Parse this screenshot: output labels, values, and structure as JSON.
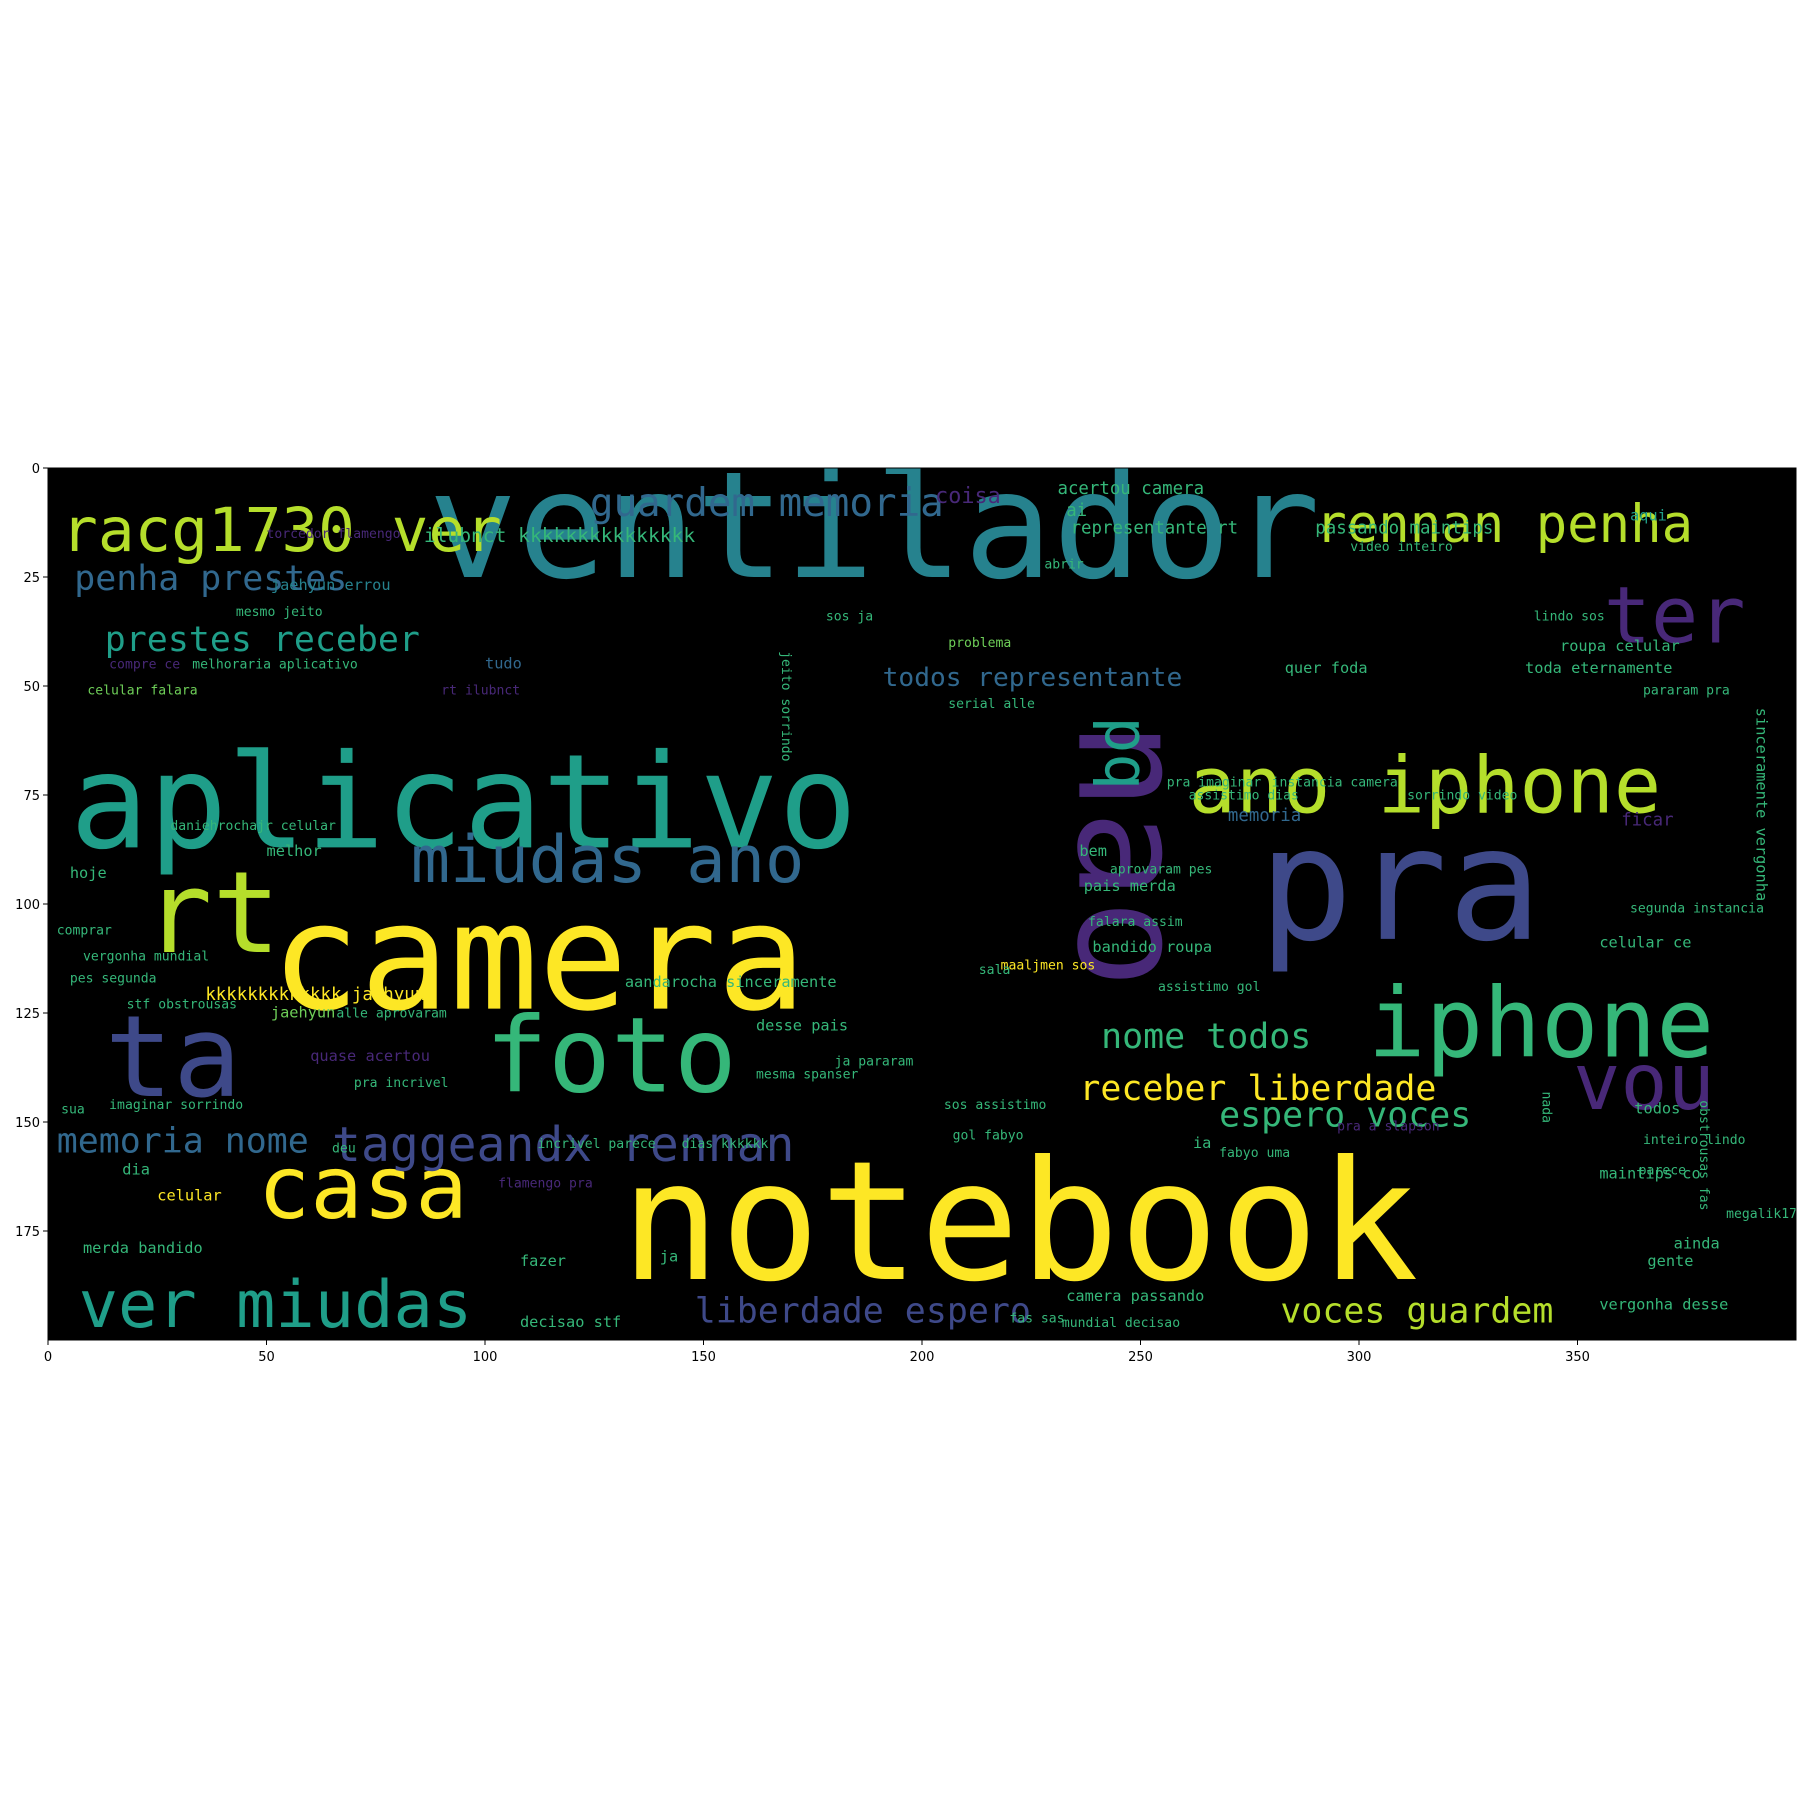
{
  "chart_data": {
    "type": "wordcloud",
    "title": "",
    "xlabel": "",
    "ylabel": "",
    "xlim": [
      0,
      400
    ],
    "ylim": [
      200,
      0
    ],
    "xticks": [
      0,
      50,
      100,
      150,
      200,
      250,
      300,
      350
    ],
    "yticks": [
      0,
      25,
      50,
      75,
      100,
      125,
      150,
      175
    ],
    "background": "#000000",
    "palette": {
      "yellow": "#fde725",
      "lime": "#b5de2b",
      "green": "#6ece58",
      "teal": "#35b779",
      "cyan": "#1f9e89",
      "blue": "#26828e",
      "steel": "#31688e",
      "indigo": "#3e4989",
      "purple": "#482878",
      "dark": "#440154"
    },
    "words": [
      {
        "text": "ventilador",
        "x": 87,
        "y": 25,
        "size": 34,
        "color": "blue",
        "rotate": 0
      },
      {
        "text": "notebook",
        "x": 131,
        "y": 186,
        "size": 38,
        "color": "yellow",
        "rotate": 0
      },
      {
        "text": "pra",
        "x": 277,
        "y": 108,
        "size": 36,
        "color": "indigo",
        "rotate": 0
      },
      {
        "text": "nao",
        "x": 236,
        "y": 58,
        "size": 34,
        "color": "purple",
        "rotate": 90
      },
      {
        "text": "aplicativo",
        "x": 5,
        "y": 87,
        "size": 30,
        "color": "cyan",
        "rotate": 0
      },
      {
        "text": "camera",
        "x": 51,
        "y": 124,
        "size": 34,
        "color": "yellow",
        "rotate": 0
      },
      {
        "text": "rt",
        "x": 22,
        "y": 111,
        "size": 26,
        "color": "lime",
        "rotate": 0
      },
      {
        "text": "ta",
        "x": 13,
        "y": 144,
        "size": 26,
        "color": "indigo",
        "rotate": 0
      },
      {
        "text": "foto",
        "x": 100,
        "y": 143,
        "size": 24,
        "color": "teal",
        "rotate": 0
      },
      {
        "text": "iphone",
        "x": 302,
        "y": 135,
        "size": 22,
        "color": "teal",
        "rotate": 0
      },
      {
        "text": "ano iphone",
        "x": 261,
        "y": 79,
        "size": 18,
        "color": "lime",
        "rotate": 0
      },
      {
        "text": "ter",
        "x": 356,
        "y": 40,
        "size": 18,
        "color": "purple",
        "rotate": 0
      },
      {
        "text": "vou",
        "x": 349,
        "y": 147,
        "size": 18,
        "color": "purple",
        "rotate": 0
      },
      {
        "text": "pq",
        "x": 242,
        "y": 57,
        "size": 14,
        "color": "cyan",
        "rotate": 90
      },
      {
        "text": "racg1730 ver",
        "x": 3,
        "y": 19,
        "size": 14,
        "color": "lime",
        "rotate": 0
      },
      {
        "text": "rennan penha",
        "x": 290,
        "y": 17,
        "size": 12,
        "color": "lime",
        "rotate": 0
      },
      {
        "text": "miudas ano",
        "x": 83,
        "y": 95,
        "size": 15,
        "color": "steel",
        "rotate": 0
      },
      {
        "text": "casa",
        "x": 48,
        "y": 172,
        "size": 20,
        "color": "yellow",
        "rotate": 0
      },
      {
        "text": "ver miudas",
        "x": 7,
        "y": 197,
        "size": 15,
        "color": "cyan",
        "rotate": 0
      },
      {
        "text": "taggeandx rennan",
        "x": 65,
        "y": 159,
        "size": 11,
        "color": "indigo",
        "rotate": 0
      },
      {
        "text": "guardem memoria",
        "x": 124,
        "y": 11,
        "size": 9,
        "color": "steel",
        "rotate": 0
      },
      {
        "text": "penha prestes",
        "x": 6,
        "y": 28,
        "size": 8,
        "color": "steel",
        "rotate": 0
      },
      {
        "text": "prestes receber",
        "x": 13,
        "y": 42,
        "size": 8,
        "color": "cyan",
        "rotate": 0
      },
      {
        "text": "memoria nome",
        "x": 2,
        "y": 157,
        "size": 8,
        "color": "steel",
        "rotate": 0
      },
      {
        "text": "receber liberdade",
        "x": 236,
        "y": 145,
        "size": 8,
        "color": "yellow",
        "rotate": 0
      },
      {
        "text": "espero voces",
        "x": 268,
        "y": 151,
        "size": 8,
        "color": "teal",
        "rotate": 0
      },
      {
        "text": "nome todos",
        "x": 241,
        "y": 133,
        "size": 8,
        "color": "teal",
        "rotate": 0
      },
      {
        "text": "voces guardem",
        "x": 282,
        "y": 196,
        "size": 8,
        "color": "lime",
        "rotate": 0
      },
      {
        "text": "liberdade espero",
        "x": 148,
        "y": 196,
        "size": 8,
        "color": "indigo",
        "rotate": 0
      },
      {
        "text": "todos representante",
        "x": 191,
        "y": 50,
        "size": 6,
        "color": "steel",
        "rotate": 0
      },
      {
        "text": "ilubnct kkkkkkkkkkkkkkk",
        "x": 86,
        "y": 17,
        "size": 4.5,
        "color": "teal",
        "rotate": 0
      },
      {
        "text": "acertou camera",
        "x": 231,
        "y": 6,
        "size": 4,
        "color": "teal",
        "rotate": 0
      },
      {
        "text": "coisa",
        "x": 203,
        "y": 8,
        "size": 5,
        "color": "purple",
        "rotate": 0
      },
      {
        "text": "ai",
        "x": 233,
        "y": 11,
        "size": 4,
        "color": "teal",
        "rotate": 0
      },
      {
        "text": "representante rt",
        "x": 234,
        "y": 15,
        "size": 4,
        "color": "teal",
        "rotate": 0
      },
      {
        "text": "passando maintips",
        "x": 290,
        "y": 15,
        "size": 4,
        "color": "teal",
        "rotate": 0
      },
      {
        "text": "aqui",
        "x": 362,
        "y": 12,
        "size": 3.5,
        "color": "cyan",
        "rotate": 0
      },
      {
        "text": "torcedor flamengo",
        "x": 50,
        "y": 16,
        "size": 3,
        "color": "purple",
        "rotate": 0
      },
      {
        "text": "video inteiro",
        "x": 298,
        "y": 19,
        "size": 3,
        "color": "teal",
        "rotate": 0
      },
      {
        "text": "jaehyun errou",
        "x": 51,
        "y": 28,
        "size": 3.5,
        "color": "blue",
        "rotate": 0
      },
      {
        "text": "abrir",
        "x": 228,
        "y": 23,
        "size": 3,
        "color": "teal",
        "rotate": 0
      },
      {
        "text": "mesmo jeito",
        "x": 43,
        "y": 34,
        "size": 3,
        "color": "teal",
        "rotate": 0
      },
      {
        "text": "sos ja",
        "x": 178,
        "y": 35,
        "size": 3,
        "color": "teal",
        "rotate": 0
      },
      {
        "text": "lindo sos",
        "x": 340,
        "y": 35,
        "size": 3,
        "color": "teal",
        "rotate": 0
      },
      {
        "text": "problema",
        "x": 206,
        "y": 41,
        "size": 3,
        "color": "green",
        "rotate": 0
      },
      {
        "text": "roupa celular",
        "x": 346,
        "y": 42,
        "size": 3.5,
        "color": "teal",
        "rotate": 0
      },
      {
        "text": "tudo",
        "x": 100,
        "y": 46,
        "size": 3.5,
        "color": "steel",
        "rotate": 0
      },
      {
        "text": "quer foda",
        "x": 283,
        "y": 47,
        "size": 3.5,
        "color": "teal",
        "rotate": 0
      },
      {
        "text": "toda eternamente",
        "x": 338,
        "y": 47,
        "size": 3.5,
        "color": "teal",
        "rotate": 0
      },
      {
        "text": "compre ce",
        "x": 14,
        "y": 46,
        "size": 3,
        "color": "purple",
        "rotate": 0
      },
      {
        "text": "melhoraria aplicativo",
        "x": 33,
        "y": 46,
        "size": 3,
        "color": "teal",
        "rotate": 0
      },
      {
        "text": "celular falara",
        "x": 9,
        "y": 52,
        "size": 3,
        "color": "green",
        "rotate": 0
      },
      {
        "text": "rt ilubnct",
        "x": 90,
        "y": 52,
        "size": 3,
        "color": "purple",
        "rotate": 0
      },
      {
        "text": "pararam pra",
        "x": 365,
        "y": 52,
        "size": 3,
        "color": "teal",
        "rotate": 0
      },
      {
        "text": "serial alle",
        "x": 206,
        "y": 55,
        "size": 3,
        "color": "teal",
        "rotate": 0
      },
      {
        "text": "pra imaginar",
        "x": 256,
        "y": 73,
        "size": 3,
        "color": "teal",
        "rotate": 0
      },
      {
        "text": "memoria",
        "x": 270,
        "y": 81,
        "size": 4,
        "color": "steel",
        "rotate": 0
      },
      {
        "text": "ficar",
        "x": 360,
        "y": 82,
        "size": 4,
        "color": "purple",
        "rotate": 0
      },
      {
        "text": "daniehrochajr celular",
        "x": 28,
        "y": 83,
        "size": 3,
        "color": "teal",
        "rotate": 0
      },
      {
        "text": "melhor",
        "x": 50,
        "y": 89,
        "size": 3.5,
        "color": "teal",
        "rotate": 0
      },
      {
        "text": "hoje",
        "x": 5,
        "y": 94,
        "size": 3.5,
        "color": "teal",
        "rotate": 0
      },
      {
        "text": "bem",
        "x": 236,
        "y": 89,
        "size": 3.5,
        "color": "teal",
        "rotate": 0
      },
      {
        "text": "pais merda",
        "x": 237,
        "y": 97,
        "size": 3.5,
        "color": "teal",
        "rotate": 0
      },
      {
        "text": "aprovaram pes",
        "x": 243,
        "y": 93,
        "size": 3,
        "color": "teal",
        "rotate": 0
      },
      {
        "text": "segunda instancia",
        "x": 362,
        "y": 102,
        "size": 3,
        "color": "teal",
        "rotate": 0
      },
      {
        "text": "comprar",
        "x": 2,
        "y": 107,
        "size": 3,
        "color": "teal",
        "rotate": 0
      },
      {
        "text": "falara assim",
        "x": 238,
        "y": 105,
        "size": 3,
        "color": "teal",
        "rotate": 0
      },
      {
        "text": "vergonha mundial",
        "x": 8,
        "y": 113,
        "size": 3,
        "color": "teal",
        "rotate": 0
      },
      {
        "text": "bandido roupa",
        "x": 239,
        "y": 111,
        "size": 3.5,
        "color": "teal",
        "rotate": 0
      },
      {
        "text": "celular ce",
        "x": 355,
        "y": 110,
        "size": 3.5,
        "color": "teal",
        "rotate": 0
      },
      {
        "text": "pes segunda",
        "x": 5,
        "y": 118,
        "size": 3,
        "color": "teal",
        "rotate": 0
      },
      {
        "text": "kkkkkkkkkkkkk jaehyun",
        "x": 36,
        "y": 122,
        "size": 4,
        "color": "yellow",
        "rotate": 0
      },
      {
        "text": "aandarocha sinceramente",
        "x": 132,
        "y": 119,
        "size": 3.5,
        "color": "teal",
        "rotate": 0
      },
      {
        "text": "maaljmen sos",
        "x": 218,
        "y": 115,
        "size": 3,
        "color": "yellow",
        "rotate": 0
      },
      {
        "text": "assistimo gol",
        "x": 254,
        "y": 120,
        "size": 3,
        "color": "teal",
        "rotate": 0
      },
      {
        "text": "stf obstrousas",
        "x": 18,
        "y": 124,
        "size": 3,
        "color": "teal",
        "rotate": 0
      },
      {
        "text": "jaehyun",
        "x": 51,
        "y": 126,
        "size": 3.5,
        "color": "green",
        "rotate": 0
      },
      {
        "text": "alle aprovaram",
        "x": 66,
        "y": 126,
        "size": 3,
        "color": "teal",
        "rotate": 0
      },
      {
        "text": "desse pais",
        "x": 162,
        "y": 129,
        "size": 3.5,
        "color": "teal",
        "rotate": 0
      },
      {
        "text": "ja pararam",
        "x": 180,
        "y": 137,
        "size": 3,
        "color": "teal",
        "rotate": 0
      },
      {
        "text": "quase acertou",
        "x": 60,
        "y": 136,
        "size": 3.5,
        "color": "purple",
        "rotate": 0
      },
      {
        "text": "pra incrivel",
        "x": 70,
        "y": 142,
        "size": 3,
        "color": "teal",
        "rotate": 0
      },
      {
        "text": "mesma spanser",
        "x": 162,
        "y": 140,
        "size": 3,
        "color": "teal",
        "rotate": 0
      },
      {
        "text": "imaginar sorrindo",
        "x": 14,
        "y": 147,
        "size": 3,
        "color": "teal",
        "rotate": 0
      },
      {
        "text": "sos assistimo",
        "x": 205,
        "y": 147,
        "size": 3,
        "color": "teal",
        "rotate": 0
      },
      {
        "text": "deu",
        "x": 65,
        "y": 157,
        "size": 3,
        "color": "teal",
        "rotate": 0
      },
      {
        "text": "incrivel parece",
        "x": 112,
        "y": 156,
        "size": 3,
        "color": "teal",
        "rotate": 0
      },
      {
        "text": "dias kkkkkk",
        "x": 145,
        "y": 156,
        "size": 3,
        "color": "teal",
        "rotate": 0
      },
      {
        "text": "gol fabyo",
        "x": 207,
        "y": 154,
        "size": 3,
        "color": "teal",
        "rotate": 0
      },
      {
        "text": "ia",
        "x": 262,
        "y": 156,
        "size": 3.5,
        "color": "teal",
        "rotate": 0
      },
      {
        "text": "inteiro lindo",
        "x": 365,
        "y": 155,
        "size": 3,
        "color": "teal",
        "rotate": 0
      },
      {
        "text": "dia",
        "x": 17,
        "y": 162,
        "size": 3.5,
        "color": "teal",
        "rotate": 0
      },
      {
        "text": "maintips co",
        "x": 355,
        "y": 163,
        "size": 3.5,
        "color": "teal",
        "rotate": 0
      },
      {
        "text": "celular",
        "x": 25,
        "y": 168,
        "size": 3.5,
        "color": "yellow",
        "rotate": 0
      },
      {
        "text": "flamengo pra",
        "x": 103,
        "y": 165,
        "size": 3,
        "color": "purple",
        "rotate": 0
      },
      {
        "text": "megalik17 fas",
        "x": 384,
        "y": 172,
        "size": 3,
        "color": "teal",
        "rotate": 0
      },
      {
        "text": "merda bandido",
        "x": 8,
        "y": 180,
        "size": 3.5,
        "color": "teal",
        "rotate": 0
      },
      {
        "text": "ja",
        "x": 140,
        "y": 182,
        "size": 3.5,
        "color": "teal",
        "rotate": 0
      },
      {
        "text": "fazer",
        "x": 108,
        "y": 183,
        "size": 3.5,
        "color": "teal",
        "rotate": 0
      },
      {
        "text": "ainda",
        "x": 372,
        "y": 179,
        "size": 3.5,
        "color": "teal",
        "rotate": 0
      },
      {
        "text": "gente",
        "x": 366,
        "y": 183,
        "size": 3.5,
        "color": "teal",
        "rotate": 0
      },
      {
        "text": "camera passando",
        "x": 233,
        "y": 191,
        "size": 3.5,
        "color": "teal",
        "rotate": 0
      },
      {
        "text": "vergonha desse",
        "x": 355,
        "y": 193,
        "size": 3.5,
        "color": "teal",
        "rotate": 0
      },
      {
        "text": "decisao stf",
        "x": 108,
        "y": 197,
        "size": 3.5,
        "color": "teal",
        "rotate": 0
      },
      {
        "text": "mundial decisao",
        "x": 232,
        "y": 197,
        "size": 3,
        "color": "teal",
        "rotate": 0
      },
      {
        "text": "fas sas",
        "x": 220,
        "y": 196,
        "size": 3,
        "color": "teal",
        "rotate": 0
      },
      {
        "text": "parece",
        "x": 364,
        "y": 162,
        "size": 3,
        "color": "teal",
        "rotate": 0
      },
      {
        "text": "nada",
        "x": 342,
        "y": 143,
        "size": 3,
        "color": "teal",
        "rotate": 90
      },
      {
        "text": "todos",
        "x": 363,
        "y": 148,
        "size": 3.5,
        "color": "teal",
        "rotate": 0
      },
      {
        "text": "sinceramente vergonha",
        "x": 391,
        "y": 55,
        "size": 3.5,
        "color": "teal",
        "rotate": 90
      },
      {
        "text": "obstrousas fas",
        "x": 378,
        "y": 145,
        "size": 3,
        "color": "teal",
        "rotate": 90
      },
      {
        "text": "jeito sorrindo",
        "x": 168,
        "y": 42,
        "size": 3,
        "color": "teal",
        "rotate": 90
      },
      {
        "text": "sala",
        "x": 213,
        "y": 116,
        "size": 3,
        "color": "teal",
        "rotate": 0
      },
      {
        "text": "assistimo dias",
        "x": 261,
        "y": 76,
        "size": 3,
        "color": "teal",
        "rotate": 0
      },
      {
        "text": "sorrindo video",
        "x": 311,
        "y": 76,
        "size": 3,
        "color": "teal",
        "rotate": 0
      },
      {
        "text": "instancia camera",
        "x": 280,
        "y": 73,
        "size": 3,
        "color": "teal",
        "rotate": 0
      },
      {
        "text": "fabyo uma",
        "x": 268,
        "y": 158,
        "size": 3,
        "color": "teal",
        "rotate": 0
      },
      {
        "text": "pra a slapson",
        "x": 295,
        "y": 152,
        "size": 3,
        "color": "purple",
        "rotate": 0
      },
      {
        "text": "sua",
        "x": 3,
        "y": 148,
        "size": 3,
        "color": "teal",
        "rotate": 0
      }
    ]
  }
}
